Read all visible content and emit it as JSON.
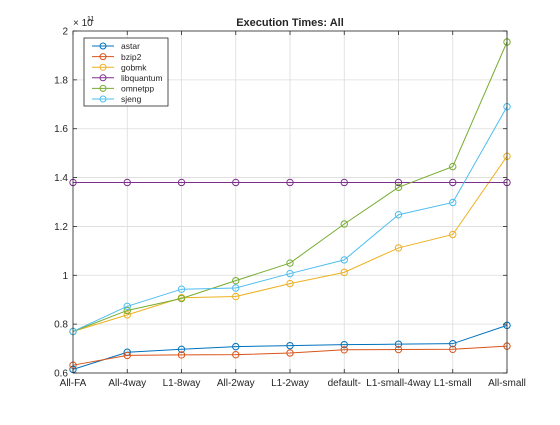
{
  "chart_data": {
    "type": "line",
    "title": "Execution Times: All",
    "xlabel": "",
    "ylabel": "",
    "categories": [
      "All-FA",
      "All-4way",
      "L1-8way",
      "All-2way",
      "L1-2way",
      "default-",
      "L1-small-4way",
      "L1-small",
      "All-small"
    ],
    "y_exponent_label": "× 10",
    "y_exponent": "11",
    "ylim": [
      0.6,
      2.0
    ],
    "yticks": [
      0.6,
      0.8,
      1.0,
      1.2,
      1.4,
      1.6,
      1.8,
      2.0
    ],
    "ytick_labels": [
      "0.6",
      "0.8",
      "1",
      "1.2",
      "1.4",
      "1.6",
      "1.8",
      "2"
    ],
    "grid": true,
    "legend_position": "top-left",
    "series": [
      {
        "name": "astar",
        "color": "#0072BD",
        "values": [
          0.615,
          0.685,
          0.697,
          0.708,
          0.712,
          0.716,
          0.718,
          0.72,
          0.795
        ]
      },
      {
        "name": "bzip2",
        "color": "#D95319",
        "values": [
          0.632,
          0.672,
          0.674,
          0.675,
          0.682,
          0.695,
          0.696,
          0.697,
          0.71
        ]
      },
      {
        "name": "gobmk",
        "color": "#EDB120",
        "values": [
          0.77,
          0.838,
          0.908,
          0.913,
          0.966,
          1.012,
          1.112,
          1.167,
          1.487
        ]
      },
      {
        "name": "libquantum",
        "color": "#7E2F8E",
        "values": [
          1.38,
          1.38,
          1.38,
          1.38,
          1.38,
          1.38,
          1.38,
          1.38,
          1.38
        ]
      },
      {
        "name": "omnetpp",
        "color": "#77AC30",
        "values": [
          0.77,
          0.856,
          0.905,
          0.978,
          1.05,
          1.21,
          1.36,
          1.445,
          1.955
        ]
      },
      {
        "name": "sjeng",
        "color": "#4DBEEE",
        "values": [
          0.77,
          0.873,
          0.943,
          0.948,
          1.007,
          1.063,
          1.248,
          1.298,
          1.69
        ]
      }
    ]
  }
}
